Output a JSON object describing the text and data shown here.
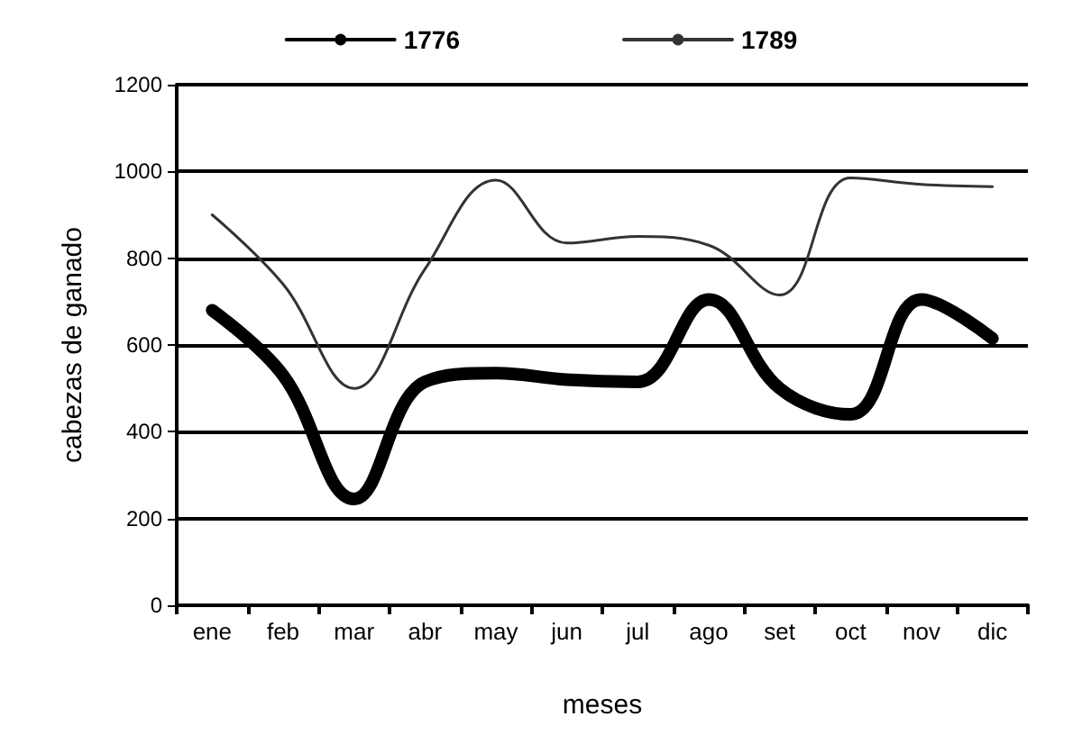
{
  "chart_data": {
    "type": "line",
    "xlabel": "meses",
    "ylabel": "cabezas de ganado",
    "categories": [
      "ene",
      "feb",
      "mar",
      "abr",
      "may",
      "jun",
      "jul",
      "ago",
      "set",
      "oct",
      "nov",
      "dic"
    ],
    "series": [
      {
        "name": "1776",
        "color": "#000000",
        "values": [
          680,
          530,
          245,
          515,
          535,
          520,
          515,
          705,
          500,
          440,
          705,
          615
        ]
      },
      {
        "name": "1789",
        "color": "#333333",
        "values": [
          900,
          740,
          500,
          775,
          980,
          835,
          850,
          830,
          715,
          985,
          970,
          965
        ]
      }
    ],
    "ylim": [
      0,
      1200
    ],
    "yticks": [
      0,
      200,
      400,
      600,
      800,
      1000,
      1200
    ],
    "grid": "y",
    "legend": "top",
    "marker": "none",
    "line_style": "solid"
  }
}
